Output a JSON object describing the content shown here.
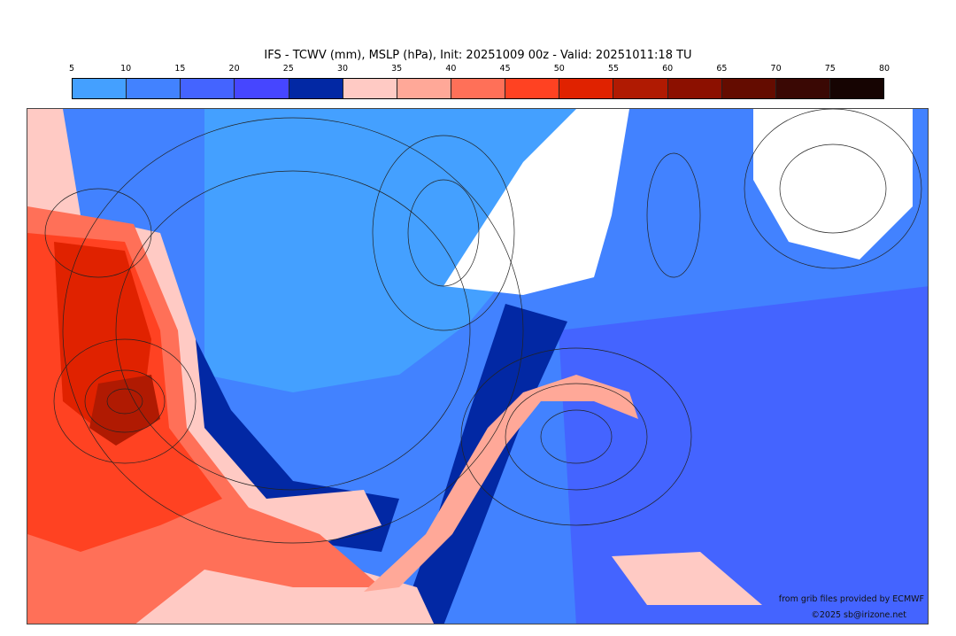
{
  "title": "IFS - TCWV (mm), MSLP (hPa), Init: 20251009 00z - Valid: 20251011:18 TU",
  "colorbar": {
    "ticks": [
      "5",
      "10",
      "15",
      "20",
      "25",
      "30",
      "35",
      "40",
      "45",
      "50",
      "55",
      "60",
      "65",
      "70",
      "75",
      "80"
    ],
    "colors": [
      "#44a0ff",
      "#4282ff",
      "#4464ff",
      "#4646ff",
      "#0228a4",
      "#ffcac4",
      "#ffa898",
      "#ff7058",
      "#ff4222",
      "#e02200",
      "#b01a02",
      "#8c1000",
      "#640c00",
      "#3a0804",
      "#160402"
    ]
  },
  "credits": {
    "source": "from grib files provided by ECMWF",
    "copyright": "©2025 sb@irizone.net"
  }
}
